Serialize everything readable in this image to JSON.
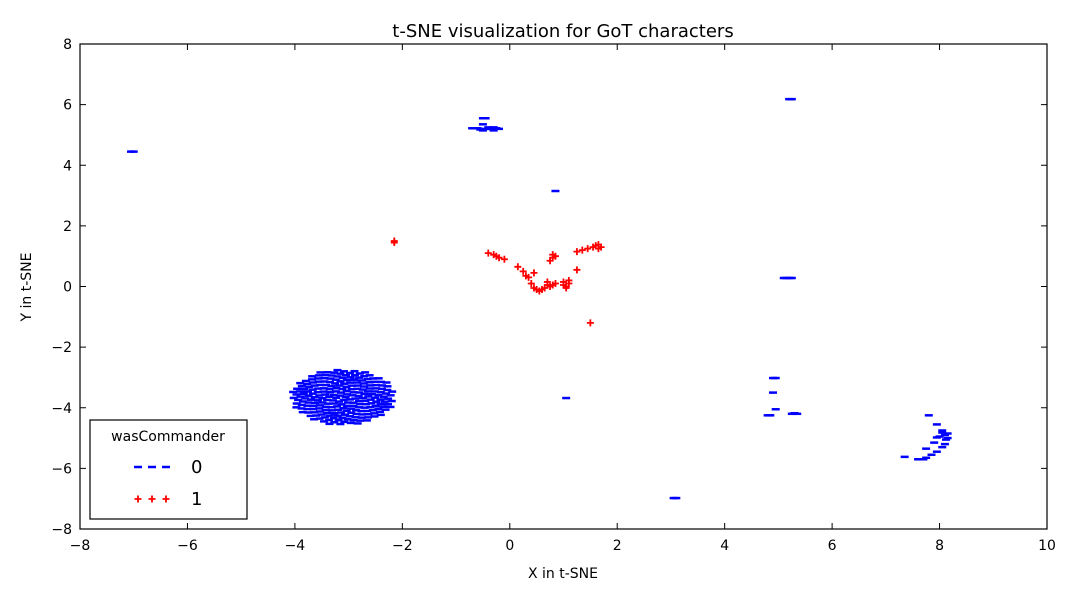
{
  "chart_data": {
    "type": "scatter",
    "title": "t-SNE visualization for GoT characters",
    "xlabel": "X in t-SNE",
    "ylabel": "Y in t-SNE",
    "xlim": [
      -8,
      10
    ],
    "ylim": [
      -8,
      8
    ],
    "xticks": [
      -8,
      -6,
      -4,
      -2,
      0,
      2,
      4,
      6,
      8,
      10
    ],
    "yticks": [
      -8,
      -6,
      -4,
      -2,
      0,
      2,
      4,
      6,
      8
    ],
    "grid": false,
    "legend": {
      "title": "wasCommander",
      "placement": "lower-left",
      "entries": [
        "0",
        "1"
      ]
    },
    "series": [
      {
        "name": "0",
        "marker": "_",
        "color": "#0000ff",
        "points": [
          [
            -7.05,
            4.45
          ],
          [
            -7.0,
            4.45
          ],
          [
            -0.7,
            5.22
          ],
          [
            -0.6,
            5.22
          ],
          [
            -0.55,
            5.18
          ],
          [
            -0.5,
            5.15
          ],
          [
            -0.45,
            5.2
          ],
          [
            -0.4,
            5.25
          ],
          [
            -0.35,
            5.2
          ],
          [
            -0.3,
            5.15
          ],
          [
            -0.25,
            5.22
          ],
          [
            -0.5,
            5.55
          ],
          [
            -0.45,
            5.55
          ],
          [
            -0.5,
            5.35
          ],
          [
            -0.3,
            5.25
          ],
          [
            -0.2,
            5.2
          ],
          [
            0.85,
            3.15
          ],
          [
            5.2,
            6.18
          ],
          [
            5.25,
            6.18
          ],
          [
            5.1,
            0.28
          ],
          [
            5.15,
            0.28
          ],
          [
            5.2,
            0.28
          ],
          [
            5.25,
            0.28
          ],
          [
            1.05,
            -3.68
          ],
          [
            4.9,
            -3.02
          ],
          [
            4.95,
            -3.02
          ],
          [
            4.9,
            -3.5
          ],
          [
            4.95,
            -4.05
          ],
          [
            4.8,
            -4.25
          ],
          [
            4.85,
            -4.25
          ],
          [
            5.25,
            -4.2
          ],
          [
            5.3,
            -4.18
          ],
          [
            5.35,
            -4.2
          ],
          [
            3.05,
            -6.98
          ],
          [
            3.1,
            -6.98
          ],
          [
            7.8,
            -4.25
          ],
          [
            7.95,
            -4.55
          ],
          [
            8.05,
            -4.75
          ],
          [
            8.1,
            -4.9
          ],
          [
            8.12,
            -5.05
          ],
          [
            8.1,
            -5.2
          ],
          [
            8.05,
            -5.3
          ],
          [
            7.95,
            -5.45
          ],
          [
            7.85,
            -5.55
          ],
          [
            7.75,
            -5.65
          ],
          [
            7.6,
            -5.7
          ],
          [
            7.7,
            -5.7
          ],
          [
            7.35,
            -5.62
          ],
          [
            7.75,
            -5.35
          ],
          [
            7.9,
            -5.15
          ],
          [
            8.0,
            -4.95
          ],
          [
            8.05,
            -4.82
          ],
          [
            7.95,
            -4.98
          ],
          [
            8.15,
            -4.85
          ],
          [
            8.15,
            -5.0
          ]
        ],
        "cluster": {
          "center": [
            -3.1,
            -3.65
          ],
          "radius": [
            0.95,
            0.92
          ],
          "count": 230
        }
      },
      {
        "name": "1",
        "marker": "+",
        "color": "#ff0000",
        "points": [
          [
            -2.15,
            1.5
          ],
          [
            -2.15,
            1.45
          ],
          [
            -0.4,
            1.1
          ],
          [
            -0.3,
            1.05
          ],
          [
            -0.25,
            1.0
          ],
          [
            -0.2,
            0.95
          ],
          [
            -0.1,
            0.9
          ],
          [
            0.15,
            0.65
          ],
          [
            0.25,
            0.5
          ],
          [
            0.3,
            0.35
          ],
          [
            0.35,
            0.3
          ],
          [
            0.45,
            0.45
          ],
          [
            0.4,
            0.1
          ],
          [
            0.45,
            -0.05
          ],
          [
            0.5,
            -0.1
          ],
          [
            0.55,
            -0.15
          ],
          [
            0.6,
            -0.1
          ],
          [
            0.65,
            -0.05
          ],
          [
            0.7,
            0.05
          ],
          [
            0.7,
            0.15
          ],
          [
            0.75,
            0.0
          ],
          [
            0.8,
            0.05
          ],
          [
            0.85,
            0.1
          ],
          [
            0.75,
            0.85
          ],
          [
            0.8,
            0.95
          ],
          [
            0.85,
            1.0
          ],
          [
            0.8,
            1.05
          ],
          [
            1.0,
            0.05
          ],
          [
            1.05,
            0.0
          ],
          [
            1.1,
            0.1
          ],
          [
            1.1,
            0.2
          ],
          [
            1.0,
            0.15
          ],
          [
            1.05,
            -0.05
          ],
          [
            1.25,
            0.55
          ],
          [
            1.25,
            1.15
          ],
          [
            1.35,
            1.2
          ],
          [
            1.45,
            1.25
          ],
          [
            1.55,
            1.3
          ],
          [
            1.6,
            1.35
          ],
          [
            1.65,
            1.25
          ],
          [
            1.7,
            1.3
          ],
          [
            1.65,
            1.38
          ],
          [
            1.5,
            -1.2
          ]
        ]
      }
    ]
  }
}
